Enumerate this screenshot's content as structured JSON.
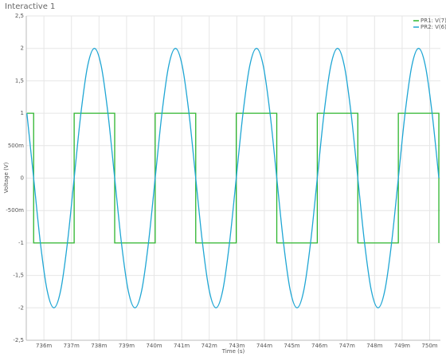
{
  "chart_data": {
    "type": "line",
    "title": "Interactive 1",
    "xlabel": "Time (s)",
    "ylabel": "Voltage (V)",
    "xlim": [
      0.73536,
      0.75039
    ],
    "ylim": [
      -2.5,
      2.5
    ],
    "grid": true,
    "legend": "top-right",
    "xticks": [
      {
        "value": 0.736,
        "label": "736m"
      },
      {
        "value": 0.737,
        "label": "737m"
      },
      {
        "value": 0.738,
        "label": "738m"
      },
      {
        "value": 0.739,
        "label": "739m"
      },
      {
        "value": 0.74,
        "label": "740m"
      },
      {
        "value": 0.741,
        "label": "741m"
      },
      {
        "value": 0.742,
        "label": "742m"
      },
      {
        "value": 0.743,
        "label": "743m"
      },
      {
        "value": 0.744,
        "label": "744m"
      },
      {
        "value": 0.745,
        "label": "745m"
      },
      {
        "value": 0.746,
        "label": "746m"
      },
      {
        "value": 0.747,
        "label": "747m"
      },
      {
        "value": 0.748,
        "label": "748m"
      },
      {
        "value": 0.749,
        "label": "749m"
      },
      {
        "value": 0.75,
        "label": "750m"
      }
    ],
    "yticks": [
      {
        "value": 2.5,
        "label": "2,5"
      },
      2,
      {
        "value": 1.5,
        "label": "1,5"
      },
      1,
      {
        "value": 0.5,
        "label": "500m"
      },
      0,
      {
        "value": -0.5,
        "label": "-500m"
      },
      -1,
      {
        "value": -1.5,
        "label": "-1,5"
      },
      -2,
      {
        "value": -2.5,
        "label": "-2,5"
      }
    ],
    "series": [
      {
        "name": "PR1: V(7)",
        "color": "#2db52d",
        "curve": "linear",
        "x": [
          0.735382,
          0.7356271,
          0.7356271,
          0.7370977,
          0.7370977,
          0.7385683,
          0.7385683,
          0.7400389,
          0.7400389,
          0.7415095,
          0.7415095,
          0.7429801,
          0.7429801,
          0.7444507,
          0.7444507,
          0.7459213,
          0.7459213,
          0.7473919,
          0.7473919,
          0.7488625,
          0.7488625,
          0.7503331,
          0.7503331
        ],
        "values": [
          1,
          1,
          -1,
          -1,
          1,
          1,
          -1,
          -1,
          1,
          1,
          -1,
          -1,
          1,
          1,
          -1,
          -1,
          1,
          1,
          -1,
          -1,
          1,
          1,
          -1
        ]
      },
      {
        "name": "PR2: V(6)",
        "color": "#1fa6d4",
        "curve": "smooth",
        "x": [
          0.735382,
          0.7356271,
          0.7358722,
          0.7361173,
          0.7363624,
          0.7366075,
          0.7368526,
          0.7370977,
          0.7373428,
          0.7375879,
          0.737833,
          0.7380781,
          0.7383232,
          0.7385683,
          0.7388134,
          0.7390585,
          0.7393036,
          0.7395487,
          0.7397938,
          0.7400389,
          0.740284,
          0.7405291,
          0.7407742,
          0.7410193,
          0.7412644,
          0.7415095,
          0.7417546,
          0.7419997,
          0.7422448,
          0.7424899,
          0.742735,
          0.7429801,
          0.7432252,
          0.7434703,
          0.7437154,
          0.7439605,
          0.7442056,
          0.7444507,
          0.7446958,
          0.7449409,
          0.745186,
          0.7454311,
          0.7456762,
          0.7459213,
          0.7461664,
          0.7464115,
          0.7466566,
          0.7469017,
          0.7471468,
          0.7473919,
          0.747637,
          0.7478821,
          0.7481272,
          0.7483723,
          0.7486174,
          0.7488625,
          0.7491076,
          0.7493527,
          0.7495978,
          0.7498429,
          0.750088,
          0.7503331
        ],
        "values": [
          1,
          0,
          -1,
          -1.732,
          -2,
          -1.732,
          -1,
          0,
          1,
          1.732,
          2,
          1.732,
          1,
          0,
          -1,
          -1.732,
          -2,
          -1.732,
          -1,
          0,
          1,
          1.732,
          2,
          1.732,
          1,
          0,
          -1,
          -1.732,
          -2,
          -1.732,
          -1,
          0,
          1,
          1.732,
          2,
          1.732,
          1,
          0,
          -1,
          -1.732,
          -2,
          -1.732,
          -1,
          0,
          1,
          1.732,
          2,
          1.732,
          1,
          0,
          -1,
          -1.732,
          -2,
          -1.732,
          -1,
          0,
          1,
          1.732,
          2,
          1.732,
          1,
          0
        ]
      }
    ]
  }
}
